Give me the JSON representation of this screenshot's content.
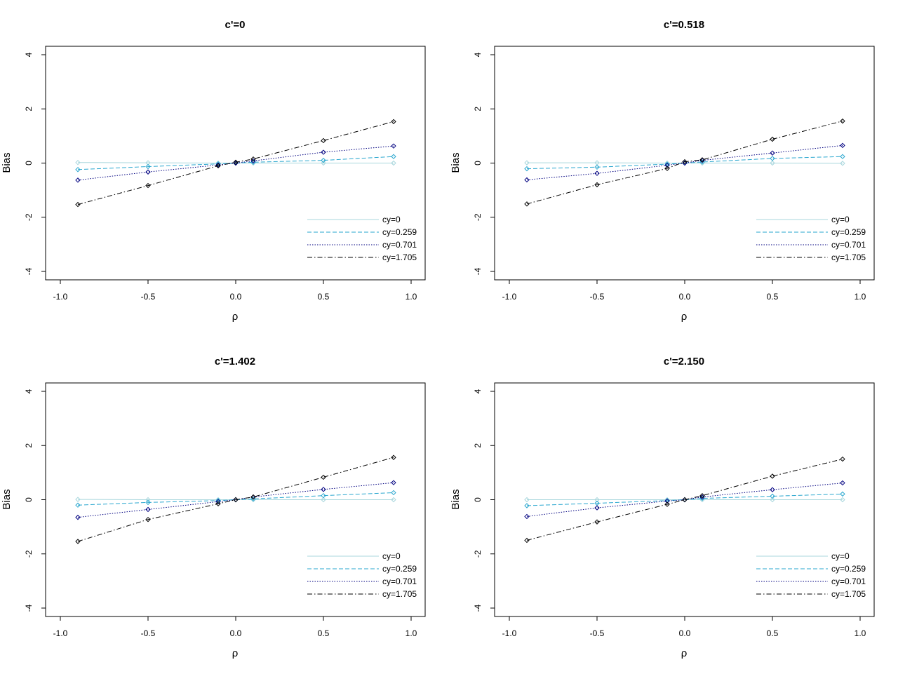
{
  "colors": {
    "cy_0": "#a9d7dd",
    "cy_0_259": "#2aa7cf",
    "cy_0_701": "#000080",
    "cy_1_705": "#000000"
  },
  "chart_data": [
    {
      "type": "line",
      "title": "c'=0",
      "xlabel": "ρ",
      "ylabel": "Bias",
      "xlim": [
        -1.0,
        1.0
      ],
      "ylim": [
        -4,
        4
      ],
      "xticks": [
        "-1.0",
        "-0.5",
        "0.0",
        "0.5",
        "1.0"
      ],
      "yticks": [
        "-4",
        "-2",
        "0",
        "2",
        "4"
      ],
      "x": [
        -0.9,
        -0.5,
        -0.1,
        0,
        0.1,
        0.5,
        0.9
      ],
      "grid": false,
      "legend_position": "bottom-right",
      "series": [
        {
          "name": "cy=0",
          "color": "#a9d7dd",
          "dash": "solid",
          "values": [
            0.02,
            0.01,
            0.0,
            0.0,
            0.0,
            0.0,
            0.0
          ]
        },
        {
          "name": "cy=0.259",
          "color": "#2aa7cf",
          "dash": "dashed",
          "values": [
            -0.24,
            -0.13,
            -0.03,
            0.0,
            0.03,
            0.1,
            0.24
          ]
        },
        {
          "name": "cy=0.701",
          "color": "#000080",
          "dash": "dotted",
          "values": [
            -0.63,
            -0.33,
            -0.07,
            0.0,
            0.08,
            0.4,
            0.63
          ]
        },
        {
          "name": "cy=1.705",
          "color": "#000000",
          "dash": "dotdash",
          "values": [
            -1.53,
            -0.83,
            -0.1,
            0.03,
            0.15,
            0.83,
            1.53
          ]
        }
      ]
    },
    {
      "type": "line",
      "title": "c'=0.518",
      "xlabel": "ρ",
      "ylabel": "Bias",
      "xlim": [
        -1.0,
        1.0
      ],
      "ylim": [
        -4,
        4
      ],
      "xticks": [
        "-1.0",
        "-0.5",
        "0.0",
        "0.5",
        "1.0"
      ],
      "yticks": [
        "-4",
        "-2",
        "0",
        "2",
        "4"
      ],
      "x": [
        -0.9,
        -0.5,
        -0.1,
        0,
        0.1,
        0.5,
        0.9
      ],
      "grid": false,
      "legend_position": "bottom-right",
      "series": [
        {
          "name": "cy=0",
          "color": "#a9d7dd",
          "dash": "solid",
          "values": [
            0.01,
            0.01,
            0.0,
            0.0,
            0.0,
            0.0,
            -0.01
          ]
        },
        {
          "name": "cy=0.259",
          "color": "#2aa7cf",
          "dash": "dashed",
          "values": [
            -0.21,
            -0.15,
            -0.04,
            0.0,
            0.04,
            0.17,
            0.24
          ]
        },
        {
          "name": "cy=0.701",
          "color": "#000080",
          "dash": "dotted",
          "values": [
            -0.62,
            -0.38,
            -0.08,
            0.0,
            0.1,
            0.37,
            0.65
          ]
        },
        {
          "name": "cy=1.705",
          "color": "#000000",
          "dash": "dotdash",
          "values": [
            -1.51,
            -0.8,
            -0.2,
            0.05,
            0.12,
            0.88,
            1.55
          ]
        }
      ]
    },
    {
      "type": "line",
      "title": "c'=1.402",
      "xlabel": "ρ",
      "ylabel": "Bias",
      "xlim": [
        -1.0,
        1.0
      ],
      "ylim": [
        -4,
        4
      ],
      "xticks": [
        "-1.0",
        "-0.5",
        "0.0",
        "0.5",
        "1.0"
      ],
      "yticks": [
        "-4",
        "-2",
        "0",
        "2",
        "4"
      ],
      "x": [
        -0.9,
        -0.5,
        -0.1,
        0,
        0.1,
        0.5,
        0.9
      ],
      "grid": false,
      "legend_position": "bottom-right",
      "series": [
        {
          "name": "cy=0",
          "color": "#a9d7dd",
          "dash": "solid",
          "values": [
            0.01,
            0.0,
            0.0,
            0.0,
            0.0,
            0.0,
            0.0
          ]
        },
        {
          "name": "cy=0.259",
          "color": "#2aa7cf",
          "dash": "dashed",
          "values": [
            -0.2,
            -0.1,
            -0.03,
            0.0,
            0.03,
            0.15,
            0.26
          ]
        },
        {
          "name": "cy=0.701",
          "color": "#000080",
          "dash": "dotted",
          "values": [
            -0.65,
            -0.36,
            -0.07,
            0.0,
            0.1,
            0.38,
            0.63
          ]
        },
        {
          "name": "cy=1.705",
          "color": "#000000",
          "dash": "dotdash",
          "values": [
            -1.54,
            -0.73,
            -0.15,
            0.0,
            0.1,
            0.83,
            1.56
          ]
        }
      ]
    },
    {
      "type": "line",
      "title": "c'=2.150",
      "xlabel": "ρ",
      "ylabel": "Bias",
      "xlim": [
        -1.0,
        1.0
      ],
      "ylim": [
        -4,
        4
      ],
      "xticks": [
        "-1.0",
        "-0.5",
        "0.0",
        "0.5",
        "1.0"
      ],
      "yticks": [
        "-4",
        "-2",
        "0",
        "2",
        "4"
      ],
      "x": [
        -0.9,
        -0.5,
        -0.1,
        0,
        0.1,
        0.5,
        0.9
      ],
      "grid": false,
      "legend_position": "bottom-right",
      "series": [
        {
          "name": "cy=0",
          "color": "#a9d7dd",
          "dash": "solid",
          "values": [
            0.0,
            0.0,
            0.0,
            0.0,
            0.0,
            0.0,
            0.0
          ]
        },
        {
          "name": "cy=0.259",
          "color": "#2aa7cf",
          "dash": "dashed",
          "values": [
            -0.22,
            -0.13,
            -0.03,
            0.0,
            0.05,
            0.13,
            0.21
          ]
        },
        {
          "name": "cy=0.701",
          "color": "#000080",
          "dash": "dotted",
          "values": [
            -0.62,
            -0.3,
            -0.05,
            0.0,
            0.1,
            0.37,
            0.62
          ]
        },
        {
          "name": "cy=1.705",
          "color": "#000000",
          "dash": "dotdash",
          "values": [
            -1.5,
            -0.82,
            -0.17,
            0.0,
            0.15,
            0.87,
            1.5
          ]
        }
      ]
    }
  ]
}
